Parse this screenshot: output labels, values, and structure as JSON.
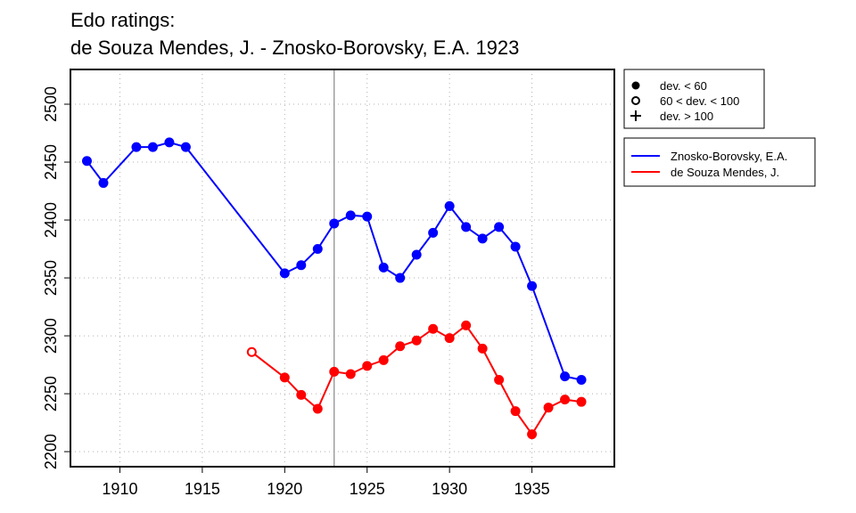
{
  "chart_data": {
    "type": "line",
    "title_line1": "Edo ratings:",
    "title_line2": "de Souza Mendes, J. - Znosko-Borovsky, E.A. 1923",
    "xlim": [
      1907,
      1940
    ],
    "ylim": [
      2187,
      2530
    ],
    "x_ticks": [
      1910,
      1915,
      1920,
      1925,
      1930,
      1935
    ],
    "y_ticks": [
      2200,
      2250,
      2300,
      2350,
      2400,
      2450,
      2500
    ],
    "grid": true,
    "marker_year": 1923,
    "series": [
      {
        "name": "Znosko-Borovsky, E.A.",
        "color": "#0000ff",
        "points": [
          {
            "x": 1908,
            "y": 2451,
            "dev": "lt60"
          },
          {
            "x": 1909,
            "y": 2432,
            "dev": "lt60"
          },
          {
            "x": 1911,
            "y": 2463,
            "dev": "lt60"
          },
          {
            "x": 1912,
            "y": 2463,
            "dev": "lt60"
          },
          {
            "x": 1913,
            "y": 2467,
            "dev": "lt60"
          },
          {
            "x": 1914,
            "y": 2463,
            "dev": "lt60"
          },
          {
            "x": 1920,
            "y": 2354,
            "dev": "lt60"
          },
          {
            "x": 1921,
            "y": 2361,
            "dev": "lt60"
          },
          {
            "x": 1922,
            "y": 2375,
            "dev": "lt60"
          },
          {
            "x": 1923,
            "y": 2397,
            "dev": "lt60"
          },
          {
            "x": 1924,
            "y": 2404,
            "dev": "lt60"
          },
          {
            "x": 1925,
            "y": 2403,
            "dev": "lt60"
          },
          {
            "x": 1926,
            "y": 2359,
            "dev": "lt60"
          },
          {
            "x": 1927,
            "y": 2350,
            "dev": "lt60"
          },
          {
            "x": 1928,
            "y": 2370,
            "dev": "lt60"
          },
          {
            "x": 1929,
            "y": 2389,
            "dev": "lt60"
          },
          {
            "x": 1930,
            "y": 2412,
            "dev": "lt60"
          },
          {
            "x": 1931,
            "y": 2394,
            "dev": "lt60"
          },
          {
            "x": 1932,
            "y": 2384,
            "dev": "lt60"
          },
          {
            "x": 1933,
            "y": 2394,
            "dev": "lt60"
          },
          {
            "x": 1934,
            "y": 2377,
            "dev": "lt60"
          },
          {
            "x": 1935,
            "y": 2343,
            "dev": "lt60"
          },
          {
            "x": 1937,
            "y": 2265,
            "dev": "lt60"
          },
          {
            "x": 1938,
            "y": 2262,
            "dev": "lt60"
          }
        ]
      },
      {
        "name": "de Souza Mendes, J.",
        "color": "#ff0000",
        "points": [
          {
            "x": 1918,
            "y": 2286,
            "dev": "60to100"
          },
          {
            "x": 1920,
            "y": 2264,
            "dev": "lt60"
          },
          {
            "x": 1921,
            "y": 2249,
            "dev": "lt60"
          },
          {
            "x": 1922,
            "y": 2237,
            "dev": "lt60"
          },
          {
            "x": 1923,
            "y": 2269,
            "dev": "lt60"
          },
          {
            "x": 1924,
            "y": 2267,
            "dev": "lt60"
          },
          {
            "x": 1925,
            "y": 2274,
            "dev": "lt60"
          },
          {
            "x": 1926,
            "y": 2279,
            "dev": "lt60"
          },
          {
            "x": 1927,
            "y": 2291,
            "dev": "lt60"
          },
          {
            "x": 1928,
            "y": 2296,
            "dev": "lt60"
          },
          {
            "x": 1929,
            "y": 2306,
            "dev": "lt60"
          },
          {
            "x": 1930,
            "y": 2298,
            "dev": "lt60"
          },
          {
            "x": 1931,
            "y": 2309,
            "dev": "lt60"
          },
          {
            "x": 1932,
            "y": 2289,
            "dev": "lt60"
          },
          {
            "x": 1933,
            "y": 2262,
            "dev": "lt60"
          },
          {
            "x": 1934,
            "y": 2235,
            "dev": "lt60"
          },
          {
            "x": 1935,
            "y": 2215,
            "dev": "lt60"
          },
          {
            "x": 1936,
            "y": 2238,
            "dev": "lt60"
          },
          {
            "x": 1937,
            "y": 2245,
            "dev": "lt60"
          },
          {
            "x": 1938,
            "y": 2243,
            "dev": "lt60"
          }
        ]
      }
    ],
    "deviation_legend": [
      {
        "symbol": "filled-circle",
        "label": "dev. < 60"
      },
      {
        "symbol": "open-circle",
        "label": "60 < dev. < 100"
      },
      {
        "symbol": "plus",
        "label": "dev. > 100"
      }
    ],
    "series_legend": [
      {
        "label": "Znosko-Borovsky, E.A.",
        "color": "#0000ff"
      },
      {
        "label": "de Souza Mendes, J.",
        "color": "#ff0000"
      }
    ]
  }
}
